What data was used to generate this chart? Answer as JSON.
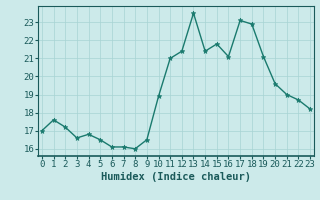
{
  "x": [
    0,
    1,
    2,
    3,
    4,
    5,
    6,
    7,
    8,
    9,
    10,
    11,
    12,
    13,
    14,
    15,
    16,
    17,
    18,
    19,
    20,
    21,
    22,
    23
  ],
  "y": [
    17.0,
    17.6,
    17.2,
    16.6,
    16.8,
    16.5,
    16.1,
    16.1,
    16.0,
    16.5,
    18.9,
    21.0,
    21.4,
    23.5,
    21.4,
    21.8,
    21.1,
    23.1,
    22.9,
    21.1,
    19.6,
    19.0,
    18.7,
    18.2
  ],
  "line_color": "#1a7a6e",
  "marker": "*",
  "marker_size": 3.5,
  "bg_color": "#cceaea",
  "grid_color": "#a8d4d4",
  "xlabel": "Humidex (Indice chaleur)",
  "ylim": [
    15.6,
    23.9
  ],
  "xlim": [
    -0.3,
    23.3
  ],
  "yticks": [
    16,
    17,
    18,
    19,
    20,
    21,
    22,
    23
  ],
  "xticks": [
    0,
    1,
    2,
    3,
    4,
    5,
    6,
    7,
    8,
    9,
    10,
    11,
    12,
    13,
    14,
    15,
    16,
    17,
    18,
    19,
    20,
    21,
    22,
    23
  ],
  "font_color": "#1a5a5a",
  "xlabel_fontsize": 7.5,
  "tick_fontsize": 6.5,
  "linewidth": 1.0
}
